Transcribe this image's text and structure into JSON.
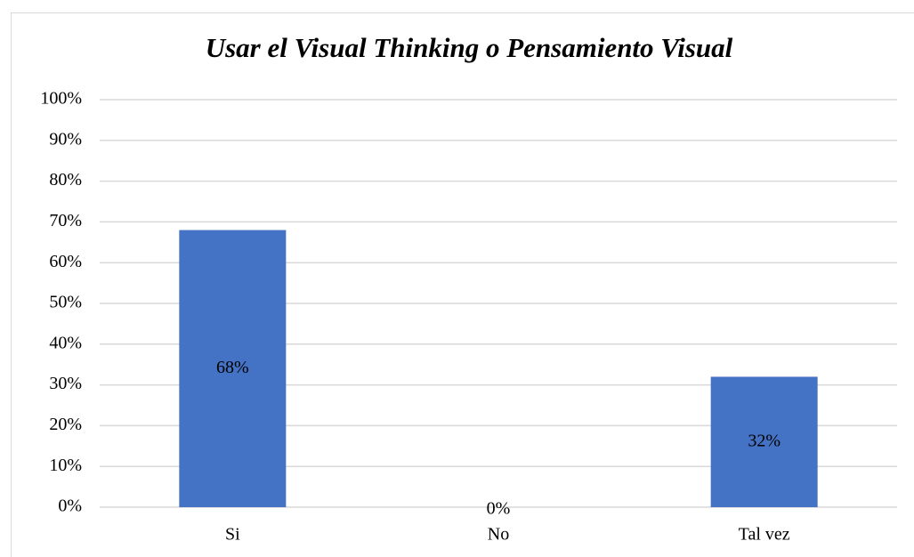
{
  "chart_data": {
    "type": "bar",
    "title": "Usar el Visual Thinking o Pensamiento Visual",
    "categories": [
      "Si",
      "No",
      "Tal vez"
    ],
    "values": [
      68,
      0,
      32
    ],
    "value_labels": [
      "68%",
      "0%",
      "32%"
    ],
    "color": "#4472c4",
    "ylim": [
      0,
      100
    ],
    "yticks": [
      {
        "value": 0,
        "label": "0%"
      },
      {
        "value": 10,
        "label": "10%"
      },
      {
        "value": 20,
        "label": "20%"
      },
      {
        "value": 30,
        "label": "30%"
      },
      {
        "value": 40,
        "label": "40%"
      },
      {
        "value": 50,
        "label": "50%"
      },
      {
        "value": 60,
        "label": "60%"
      },
      {
        "value": 70,
        "label": "70%"
      },
      {
        "value": 80,
        "label": "80%"
      },
      {
        "value": 90,
        "label": "90%"
      },
      {
        "value": 100,
        "label": "100%"
      }
    ],
    "grid": true
  }
}
